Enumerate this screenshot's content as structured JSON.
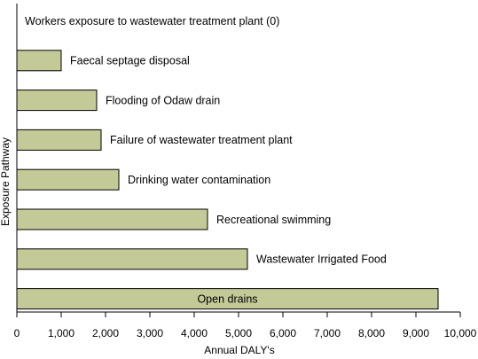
{
  "chart_data": {
    "type": "bar",
    "orientation": "horizontal",
    "categories": [
      "Workers exposure to wastewater treatment plant (0)",
      "Faecal septage disposal",
      "Flooding of Odaw drain",
      "Failure of wastewater treatment plant",
      "Drinking water contamination",
      "Recreational swimming",
      "Wastewater Irrigated Food",
      "Open drains"
    ],
    "values": [
      0,
      1000,
      1800,
      1900,
      2300,
      4300,
      5200,
      9500
    ],
    "xlabel": "Annual DALY's",
    "ylabel": "Exposure Pathway",
    "xlim": [
      0,
      10000
    ],
    "ticks": [
      "0",
      "1,000",
      "2,000",
      "3,000",
      "4,000",
      "5,000",
      "6,000",
      "7,000",
      "8,000",
      "9,000",
      "10,000"
    ],
    "grid": false,
    "colors": {
      "bar_fill": "#c3ca97",
      "bar_stroke": "#000000"
    }
  }
}
